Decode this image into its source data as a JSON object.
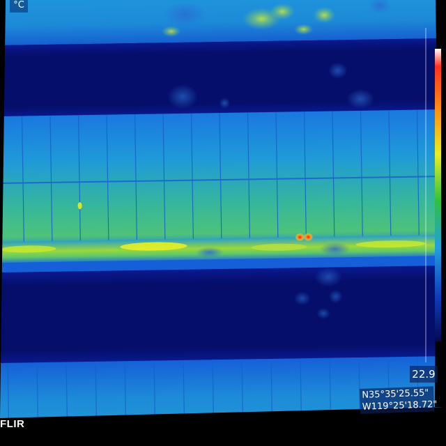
{
  "overlay": {
    "unit": "°C",
    "temperature": "22.9",
    "gps_lat": "N35°35'25.55\"",
    "gps_lon": "W119°25'18.72\"",
    "brand": "FLIR"
  },
  "colors": {
    "background": "#000000",
    "panel_blue": "#1a7ce6",
    "panel_mid": "#1fa0d8",
    "panel_green": "#3fc07a",
    "gap_dark": "#06106a",
    "hot_yellow": "#e8ee20",
    "hot_red": "#ff3a10"
  },
  "icons": {
    "scale": "temperature-scale-icon"
  }
}
